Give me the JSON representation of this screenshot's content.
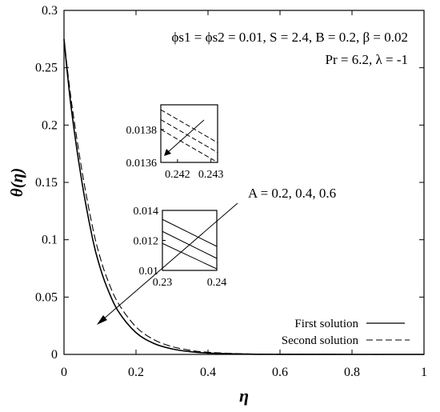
{
  "chart_data": {
    "type": "line",
    "xlabel": "η",
    "ylabel": "θ(η)",
    "xlim": [
      0,
      1
    ],
    "ylim": [
      0,
      0.3
    ],
    "x_ticks": [
      "0",
      "0.2",
      "0.4",
      "0.6",
      "0.8",
      "1"
    ],
    "y_ticks": [
      "0",
      "0.05",
      "0.1",
      "0.15",
      "0.2",
      "0.25",
      "0.3"
    ],
    "params_line1": "ϕs1 = ϕs2 = 0.01, S = 2.4, B = 0.2, β = 0.02",
    "params_line2": "Pr = 6.2, λ = -1",
    "arrow_label": "A = 0.2, 0.4, 0.6",
    "grid": false,
    "legend_position": "bottom-right",
    "series": [
      {
        "name": "First solution",
        "style": "solid",
        "x": [
          0,
          0.02,
          0.05,
          0.08,
          0.1,
          0.12,
          0.15,
          0.2,
          0.25,
          0.3,
          0.35,
          0.4,
          0.5,
          0.6,
          0.8,
          1.0
        ],
        "y": [
          0.275,
          0.215,
          0.15,
          0.1,
          0.076,
          0.058,
          0.038,
          0.019,
          0.0095,
          0.0048,
          0.0024,
          0.0012,
          0.0003,
          7e-05,
          0.0,
          0.0
        ]
      },
      {
        "name": "Second solution",
        "style": "dashed",
        "x": [
          0,
          0.02,
          0.05,
          0.08,
          0.1,
          0.12,
          0.15,
          0.2,
          0.25,
          0.3,
          0.35,
          0.4,
          0.5,
          0.6,
          0.8,
          1.0
        ],
        "y": [
          0.275,
          0.222,
          0.16,
          0.11,
          0.085,
          0.066,
          0.045,
          0.024,
          0.0128,
          0.0068,
          0.0036,
          0.0019,
          0.0005,
          0.00013,
          0.0,
          0.0
        ]
      }
    ],
    "insets": [
      {
        "xlim": [
          0.2415,
          0.2432
        ],
        "ylim": [
          0.0136,
          0.01395
        ],
        "x_ticks": [
          "0.242",
          "0.243"
        ],
        "y_ticks": [
          "0.0136",
          "0.0138"
        ],
        "lines": [
          {
            "style": "dashed",
            "x": [
              0.2415,
              0.2432
            ],
            "y": [
              0.01392,
              0.01372
            ]
          },
          {
            "style": "dashed",
            "x": [
              0.2415,
              0.2432
            ],
            "y": [
              0.01386,
              0.01366
            ]
          },
          {
            "style": "dashed",
            "x": [
              0.2415,
              0.2432
            ],
            "y": [
              0.0138,
              0.0136
            ]
          }
        ]
      },
      {
        "xlim": [
          0.23,
          0.24
        ],
        "ylim": [
          0.01,
          0.014
        ],
        "x_ticks": [
          "0.23",
          "0.24"
        ],
        "y_ticks": [
          "0.01",
          "0.012",
          "0.014"
        ],
        "lines": [
          {
            "style": "solid",
            "x": [
              0.23,
              0.24
            ],
            "y": [
              0.0134,
              0.0116
            ]
          },
          {
            "style": "solid",
            "x": [
              0.23,
              0.24
            ],
            "y": [
              0.0126,
              0.0108
            ]
          },
          {
            "style": "solid",
            "x": [
              0.23,
              0.24
            ],
            "y": [
              0.0118,
              0.0101
            ]
          }
        ]
      }
    ]
  }
}
